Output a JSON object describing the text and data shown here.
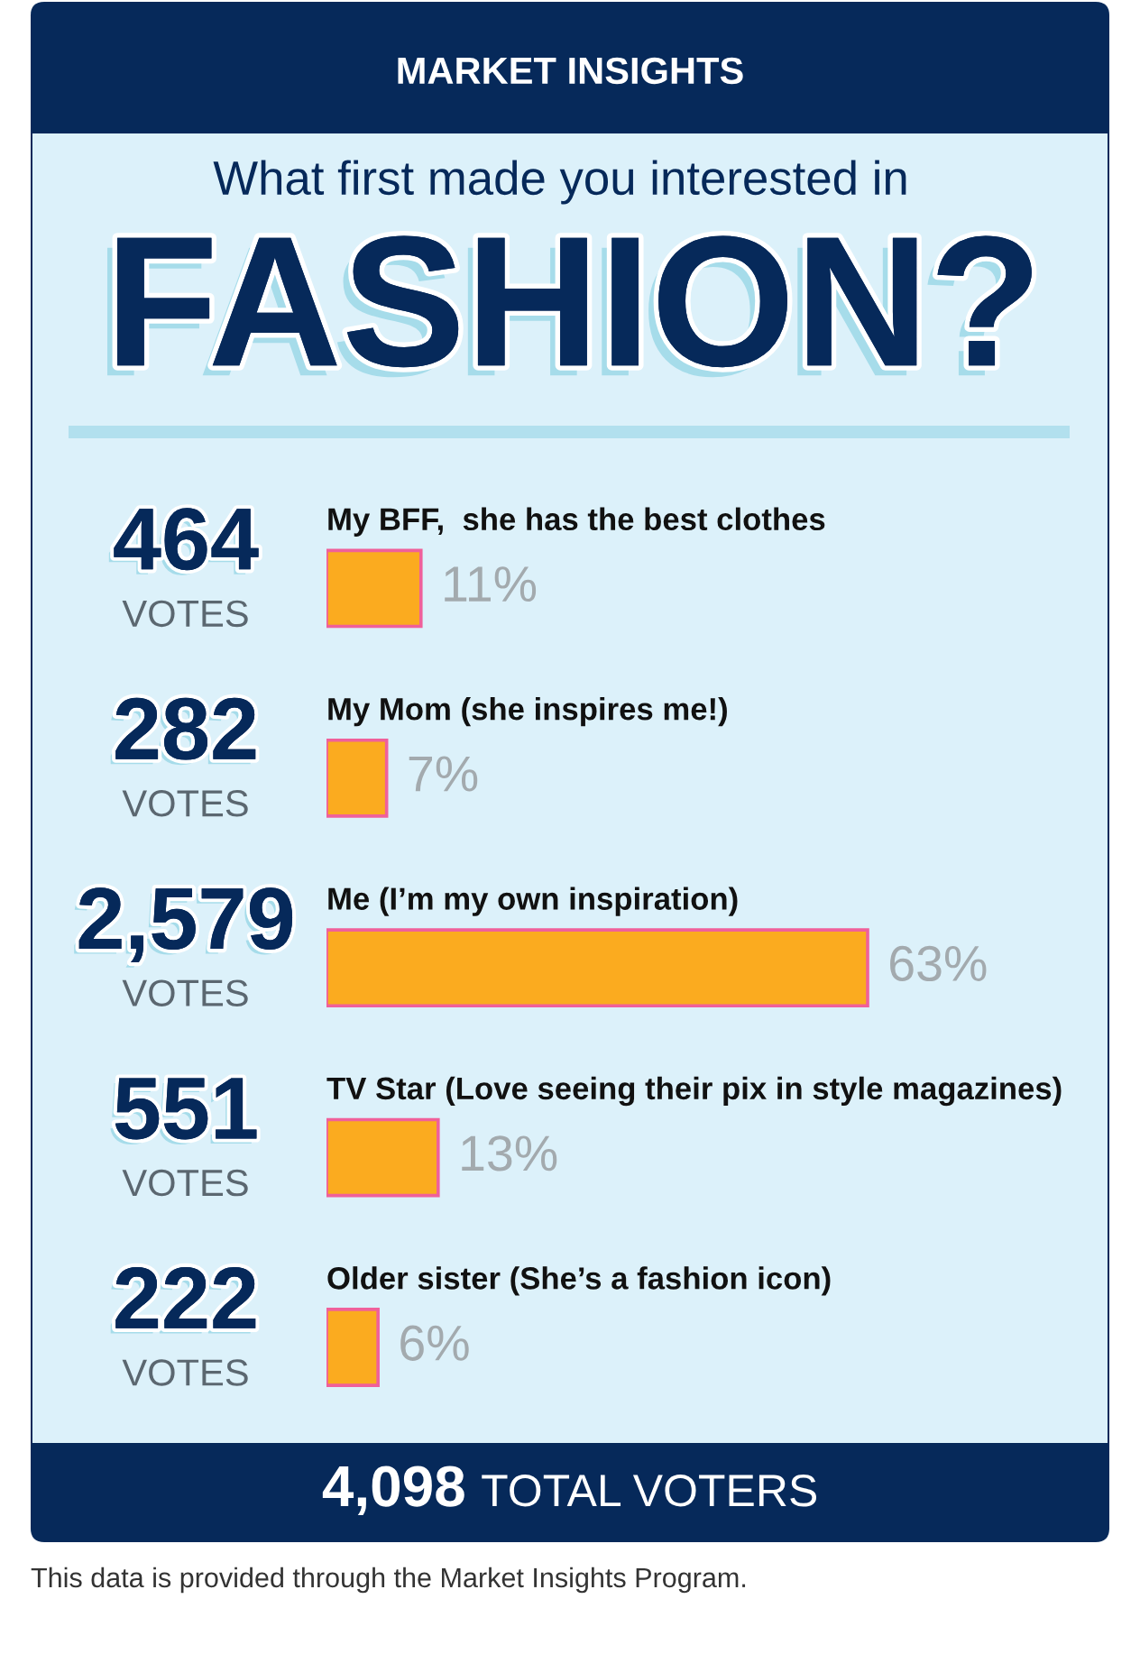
{
  "chart_data": {
    "type": "bar",
    "orientation": "horizontal",
    "title": "What first made you interested in",
    "subtitle": "FASHION?",
    "categories": [
      "My BFF,  she has the best clothes",
      "My Mom (she inspires me!)",
      "Me (I’m my own inspiration)",
      "TV Star (Love seeing their pix in style magazines)",
      "Older sister (She’s a fashion icon)"
    ],
    "values": [
      11,
      7,
      63,
      13,
      6
    ],
    "value_labels": [
      "11%",
      "7%",
      "63%",
      "13%",
      "6%"
    ],
    "color": "#fbab1f",
    "annotations": [
      "MARKET INSIGHTS",
      "464",
      "VOTES",
      "282",
      "VOTES",
      "2,579",
      "VOTES",
      "551",
      "VOTES",
      "222",
      "VOTES",
      "4,098",
      "TOTAL VOTERS",
      "This data is provided through the Market Insights Program."
    ]
  }
}
